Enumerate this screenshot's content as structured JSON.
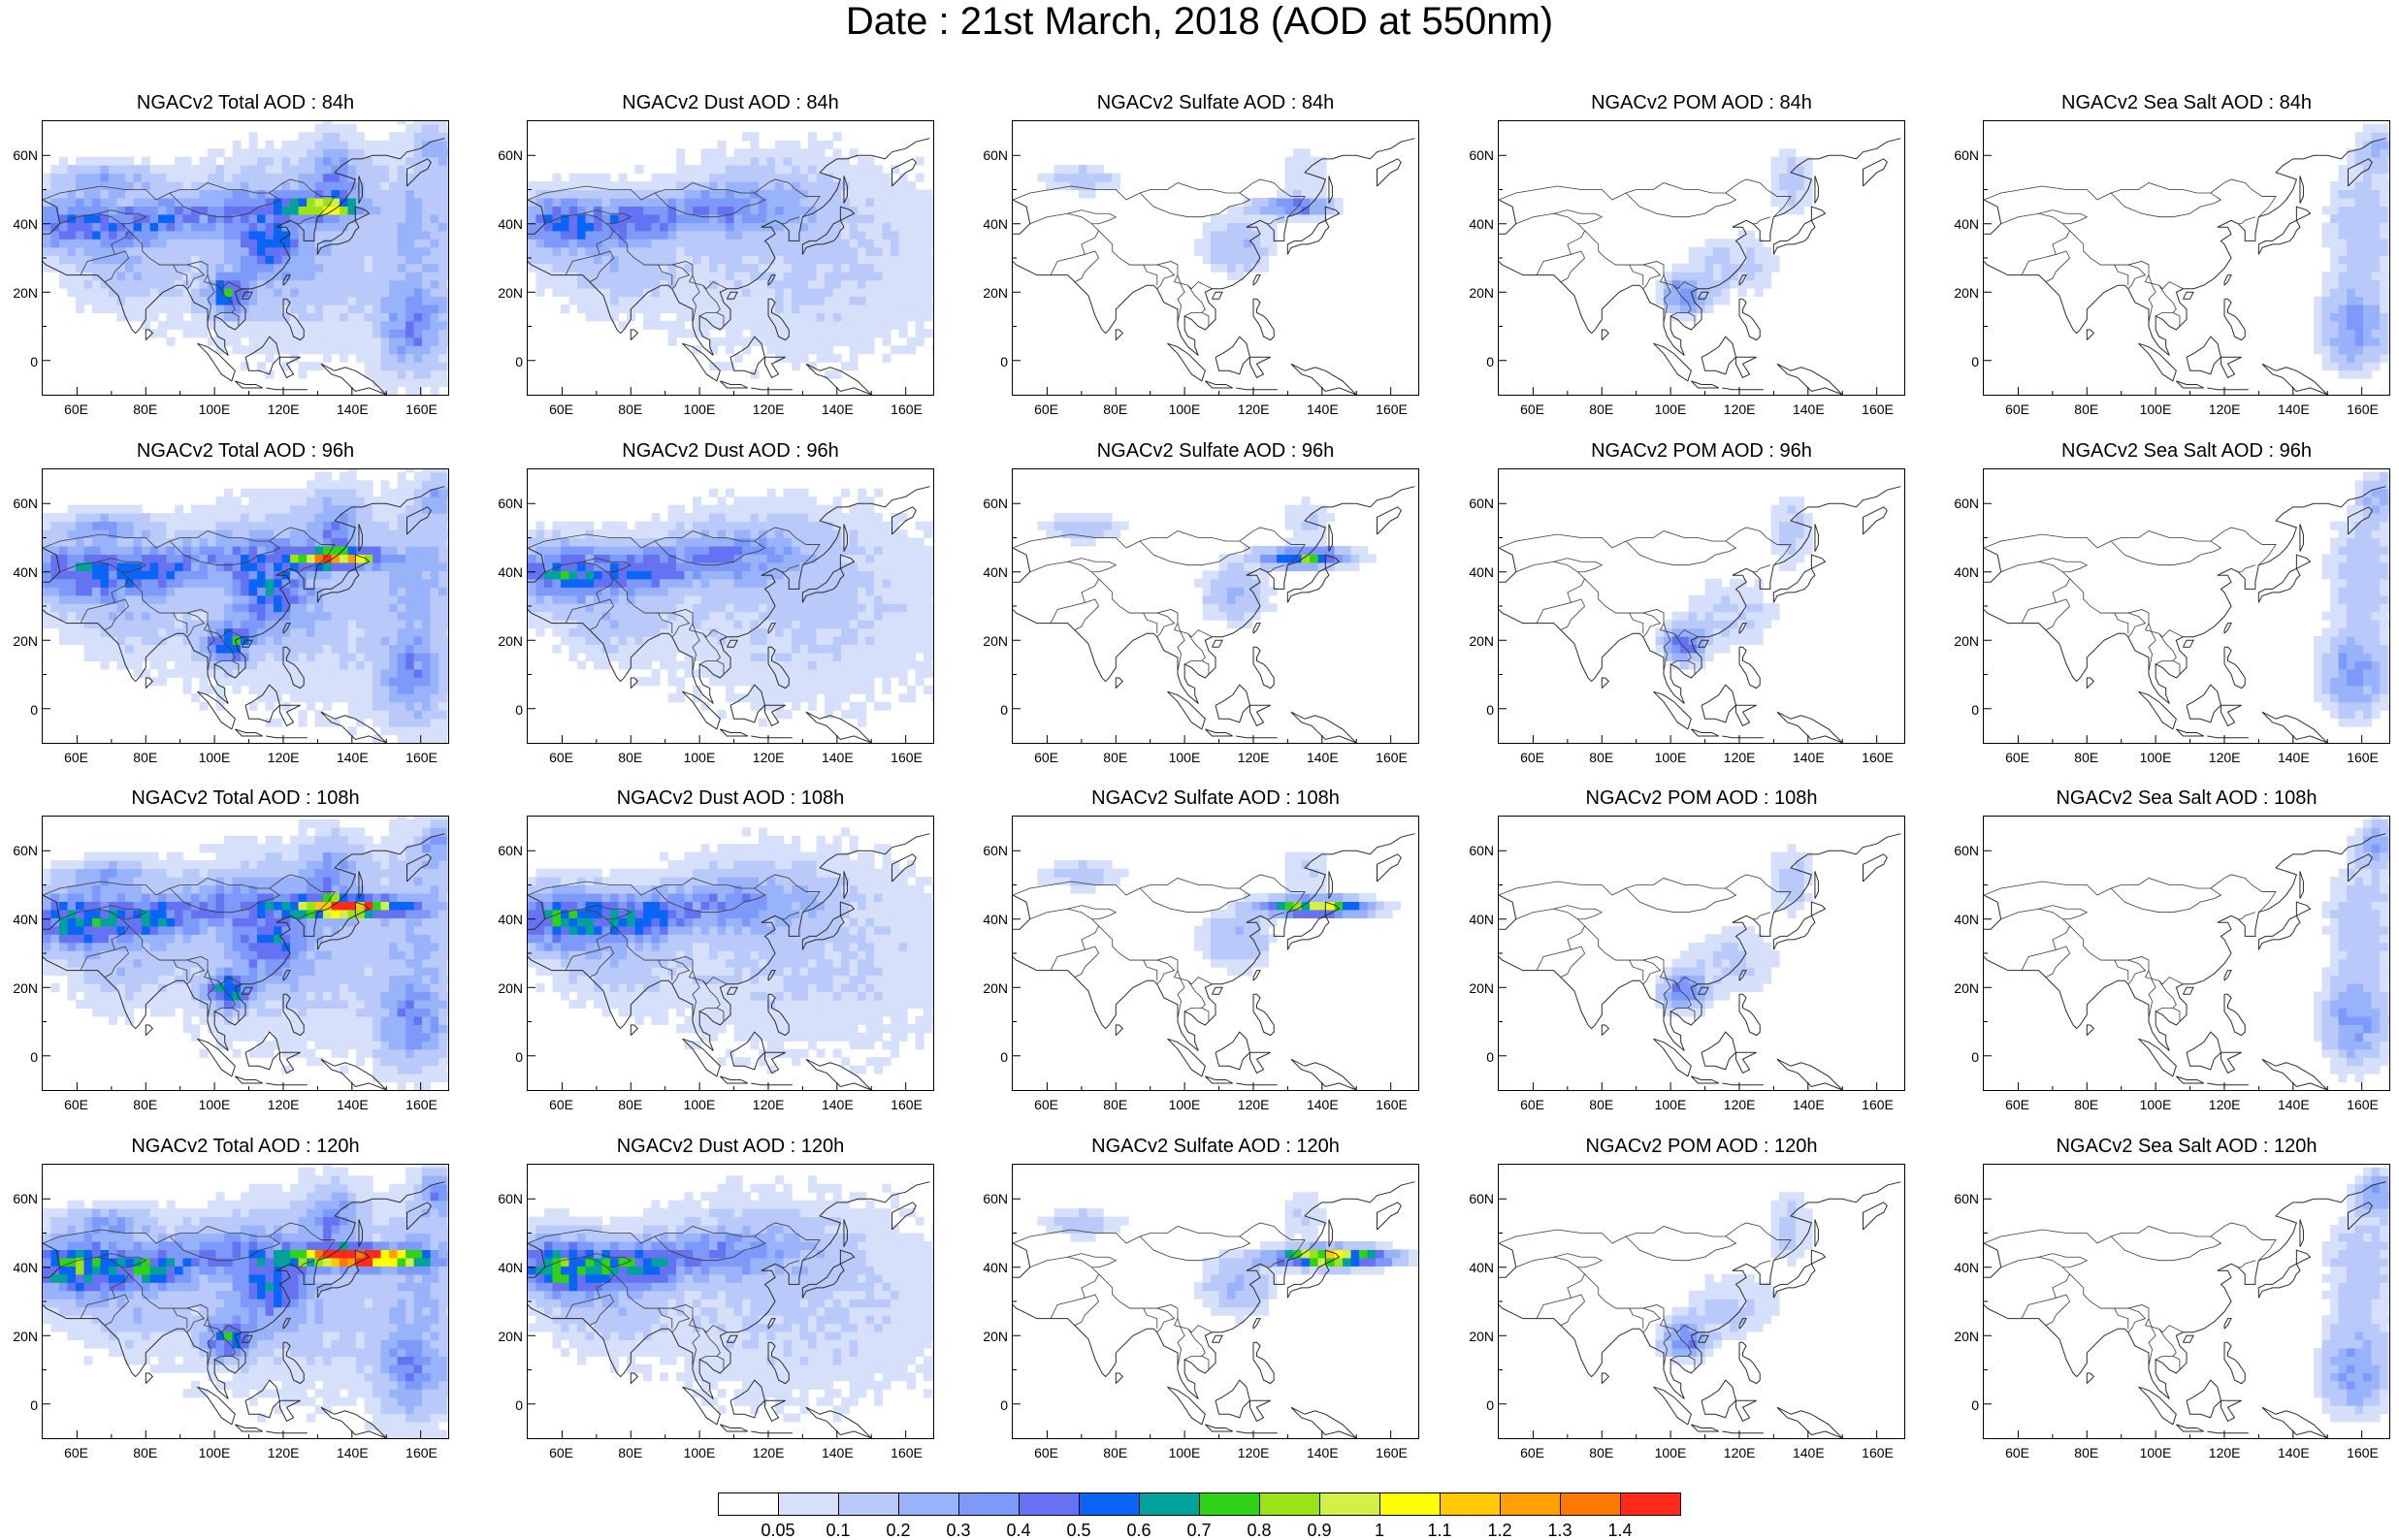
{
  "title": "Date : 21st March, 2018 (AOD at 550nm)",
  "x_ticks": [
    "60E",
    "80E",
    "100E",
    "120E",
    "140E",
    "160E"
  ],
  "y_ticks": [
    "60N",
    "40N",
    "20N",
    "0"
  ],
  "panels": [
    {
      "title": "NGACv2 Total AOD : 84h",
      "species": "total",
      "hour": 84
    },
    {
      "title": "NGACv2 Dust AOD : 84h",
      "species": "dust",
      "hour": 84
    },
    {
      "title": "NGACv2 Sulfate AOD : 84h",
      "species": "sulfate",
      "hour": 84
    },
    {
      "title": "NGACv2 POM AOD : 84h",
      "species": "pom",
      "hour": 84
    },
    {
      "title": "NGACv2 Sea Salt AOD : 84h",
      "species": "seasalt",
      "hour": 84
    },
    {
      "title": "NGACv2 Total AOD : 96h",
      "species": "total",
      "hour": 96
    },
    {
      "title": "NGACv2 Dust AOD : 96h",
      "species": "dust",
      "hour": 96
    },
    {
      "title": "NGACv2 Sulfate AOD : 96h",
      "species": "sulfate",
      "hour": 96
    },
    {
      "title": "NGACv2 POM AOD : 96h",
      "species": "pom",
      "hour": 96
    },
    {
      "title": "NGACv2 Sea Salt AOD : 96h",
      "species": "seasalt",
      "hour": 96
    },
    {
      "title": "NGACv2 Total AOD : 108h",
      "species": "total",
      "hour": 108
    },
    {
      "title": "NGACv2 Dust AOD : 108h",
      "species": "dust",
      "hour": 108
    },
    {
      "title": "NGACv2 Sulfate AOD : 108h",
      "species": "sulfate",
      "hour": 108
    },
    {
      "title": "NGACv2 POM AOD : 108h",
      "species": "pom",
      "hour": 108
    },
    {
      "title": "NGACv2 Sea Salt AOD : 108h",
      "species": "seasalt",
      "hour": 108
    },
    {
      "title": "NGACv2 Total AOD : 120h",
      "species": "total",
      "hour": 120
    },
    {
      "title": "NGACv2 Dust AOD : 120h",
      "species": "dust",
      "hour": 120
    },
    {
      "title": "NGACv2 Sulfate AOD : 120h",
      "species": "sulfate",
      "hour": 120
    },
    {
      "title": "NGACv2 POM AOD : 120h",
      "species": "pom",
      "hour": 120
    },
    {
      "title": "NGACv2 Sea Salt  AOD : 120h",
      "species": "seasalt",
      "hour": 120
    }
  ],
  "colorbar": {
    "colors": [
      "#ffffff",
      "#d6e0fb",
      "#b8c9fa",
      "#99b3fb",
      "#7d99fa",
      "#6573f3",
      "#0a64f5",
      "#00a29b",
      "#2fd217",
      "#9be317",
      "#d2f046",
      "#ffff00",
      "#ffc800",
      "#ffa000",
      "#ff7800",
      "#ff2a1a"
    ],
    "labels": [
      "0.05",
      "0.1",
      "0.2",
      "0.3",
      "0.4",
      "0.5",
      "0.6",
      "0.7",
      "0.8",
      "0.9",
      "1",
      "1.1",
      "1.2",
      "1.3",
      "1.4"
    ]
  }
}
